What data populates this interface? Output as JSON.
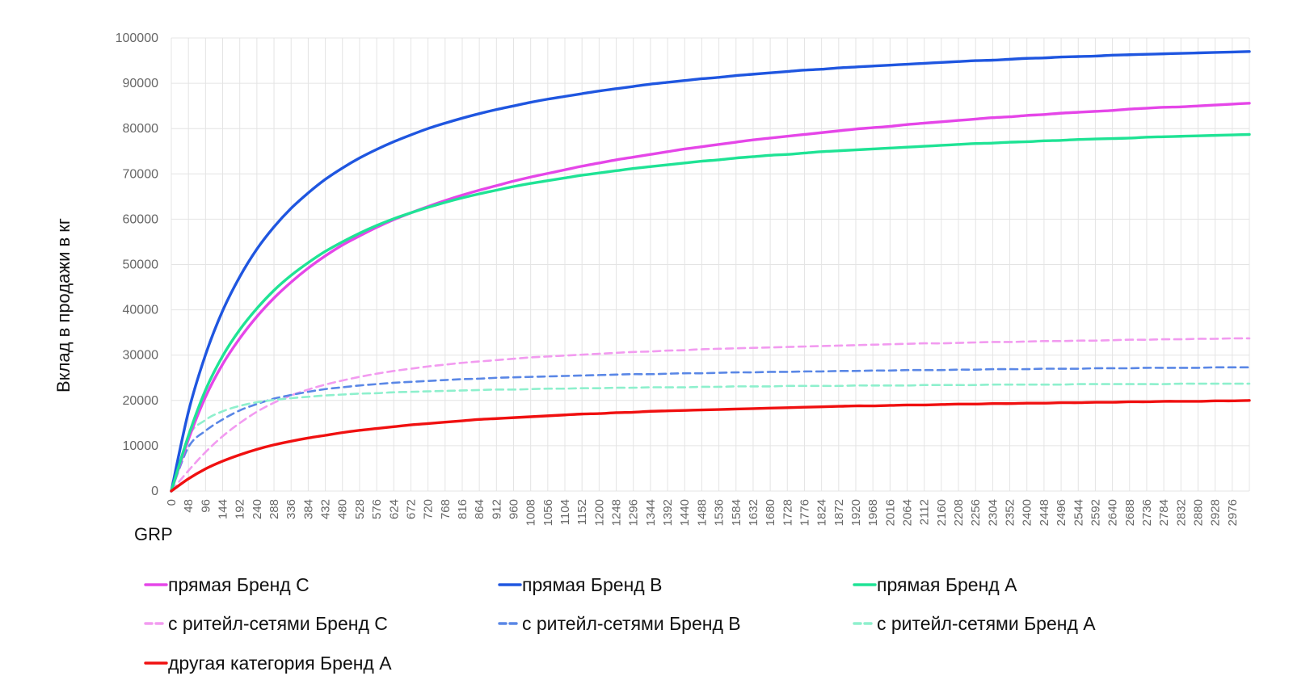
{
  "chart_data": {
    "type": "line",
    "ylabel": "Вклад в продажи в кг",
    "xlabel": "GRP",
    "ylim": [
      0,
      100000
    ],
    "yticks": [
      0,
      10000,
      20000,
      30000,
      40000,
      50000,
      60000,
      70000,
      80000,
      90000,
      100000
    ],
    "xlim": [
      0,
      3024
    ],
    "x_tick_step": 48,
    "x_tick_labels": [
      "0",
      "48",
      "96",
      "144",
      "192",
      "240",
      "288",
      "336",
      "384",
      "432",
      "480",
      "528",
      "576",
      "624",
      "672",
      "720",
      "768",
      "816",
      "864",
      "912",
      "960",
      "1008",
      "1056",
      "1104",
      "1152",
      "1200",
      "1248",
      "1296",
      "1344",
      "1392",
      "1440",
      "1488",
      "1536",
      "1584",
      "1632",
      "1680",
      "1728",
      "1776",
      "1824",
      "1872",
      "1920",
      "1968",
      "2016",
      "2064",
      "2112",
      "2160",
      "2208",
      "2256",
      "2304",
      "2352",
      "2400",
      "2448",
      "2496",
      "2544",
      "2592",
      "2640",
      "2688",
      "2736",
      "2784",
      "2832",
      "2880",
      "2928",
      "2976"
    ],
    "grid": true,
    "legend_position": "bottom",
    "x": [
      0,
      48,
      96,
      144,
      192,
      240,
      288,
      336,
      384,
      432,
      480,
      528,
      576,
      624,
      672,
      720,
      768,
      816,
      864,
      912,
      960,
      1008,
      1056,
      1104,
      1152,
      1200,
      1248,
      1296,
      1344,
      1392,
      1440,
      1488,
      1536,
      1584,
      1632,
      1680,
      1728,
      1776,
      1824,
      1872,
      1920,
      1968,
      2016,
      2064,
      2112,
      2160,
      2208,
      2256,
      2304,
      2352,
      2400,
      2448,
      2496,
      2544,
      2592,
      2640,
      2688,
      2736,
      2784,
      2832,
      2880,
      2928,
      2976,
      3024
    ],
    "series": [
      {
        "name": "прямая Бренд С",
        "color": "#e546e8",
        "dash": false,
        "values": [
          0,
          11400,
          20800,
          28000,
          33700,
          38500,
          42600,
          46100,
          49200,
          51900,
          54300,
          56300,
          58200,
          59900,
          61400,
          62800,
          64100,
          65300,
          66400,
          67400,
          68400,
          69300,
          70100,
          70900,
          71700,
          72400,
          73100,
          73700,
          74300,
          74900,
          75500,
          76000,
          76500,
          77000,
          77500,
          77900,
          78300,
          78700,
          79100,
          79500,
          79900,
          80200,
          80500,
          80900,
          81200,
          81500,
          81800,
          82100,
          82400,
          82600,
          82900,
          83100,
          83400,
          83600,
          83800,
          84000,
          84300,
          84500,
          84700,
          84800,
          85000,
          85200,
          85400,
          85600
        ]
      },
      {
        "name": "прямая Бренд В",
        "color": "#1f56e0",
        "dash": false,
        "values": [
          0,
          17500,
          30100,
          39800,
          47300,
          53400,
          58300,
          62400,
          65800,
          68800,
          71300,
          73500,
          75400,
          77100,
          78600,
          80000,
          81200,
          82300,
          83300,
          84200,
          85000,
          85800,
          86500,
          87100,
          87700,
          88300,
          88800,
          89300,
          89800,
          90200,
          90600,
          91000,
          91300,
          91700,
          92000,
          92300,
          92600,
          92900,
          93100,
          93400,
          93600,
          93800,
          94000,
          94200,
          94400,
          94600,
          94800,
          95000,
          95100,
          95300,
          95500,
          95600,
          95800,
          95900,
          96000,
          96200,
          96300,
          96400,
          96500,
          96600,
          96700,
          96800,
          96900,
          97000
        ]
      },
      {
        "name": "прямая Бренд А",
        "color": "#1fe395",
        "dash": false,
        "values": [
          0,
          12200,
          22300,
          29800,
          35600,
          40300,
          44300,
          47600,
          50400,
          52900,
          55000,
          56900,
          58600,
          60100,
          61400,
          62600,
          63700,
          64700,
          65600,
          66400,
          67200,
          67900,
          68500,
          69100,
          69700,
          70200,
          70700,
          71200,
          71600,
          72000,
          72400,
          72800,
          73100,
          73500,
          73800,
          74100,
          74300,
          74600,
          74900,
          75100,
          75300,
          75500,
          75700,
          75900,
          76100,
          76300,
          76500,
          76700,
          76800,
          77000,
          77100,
          77300,
          77400,
          77600,
          77700,
          77800,
          77900,
          78100,
          78200,
          78300,
          78400,
          78500,
          78600,
          78700
        ]
      },
      {
        "name": "с ритейл-сетями Бренд С",
        "color": "#f29bf0",
        "dash": true,
        "values": [
          0,
          4500,
          8600,
          12100,
          15000,
          17500,
          19500,
          21100,
          22400,
          23500,
          24400,
          25200,
          25900,
          26500,
          27000,
          27500,
          27900,
          28300,
          28600,
          28900,
          29200,
          29500,
          29700,
          29900,
          30100,
          30300,
          30500,
          30700,
          30800,
          31000,
          31100,
          31300,
          31400,
          31500,
          31600,
          31700,
          31800,
          31900,
          32000,
          32100,
          32200,
          32300,
          32400,
          32500,
          32600,
          32600,
          32700,
          32800,
          32900,
          32900,
          33000,
          33100,
          33100,
          33200,
          33200,
          33300,
          33400,
          33400,
          33500,
          33500,
          33600,
          33600,
          33700,
          33700
        ]
      },
      {
        "name": "с ритейл-сетями Бренд В",
        "color": "#5a87e6",
        "dash": true,
        "values": [
          0,
          9700,
          13300,
          15800,
          17800,
          19200,
          20400,
          21200,
          21900,
          22500,
          22900,
          23300,
          23600,
          23900,
          24100,
          24300,
          24500,
          24700,
          24800,
          25000,
          25100,
          25200,
          25300,
          25400,
          25500,
          25600,
          25700,
          25800,
          25800,
          25900,
          26000,
          26000,
          26100,
          26200,
          26200,
          26300,
          26300,
          26400,
          26400,
          26500,
          26500,
          26600,
          26600,
          26700,
          26700,
          26700,
          26800,
          26800,
          26900,
          26900,
          26900,
          27000,
          27000,
          27000,
          27100,
          27100,
          27100,
          27200,
          27200,
          27200,
          27200,
          27300,
          27300,
          27300
        ]
      },
      {
        "name": "с ритейл-сетями Бренд А",
        "color": "#8ef0cd",
        "dash": true,
        "values": [
          0,
          12000,
          15700,
          17600,
          18800,
          19600,
          20100,
          20500,
          20800,
          21100,
          21300,
          21500,
          21600,
          21800,
          21900,
          22000,
          22100,
          22200,
          22300,
          22400,
          22400,
          22500,
          22600,
          22600,
          22700,
          22700,
          22800,
          22800,
          22900,
          22900,
          22900,
          23000,
          23000,
          23100,
          23100,
          23100,
          23200,
          23200,
          23200,
          23200,
          23300,
          23300,
          23300,
          23300,
          23400,
          23400,
          23400,
          23400,
          23500,
          23500,
          23500,
          23500,
          23500,
          23600,
          23600,
          23600,
          23600,
          23600,
          23600,
          23700,
          23700,
          23700,
          23700,
          23700
        ]
      },
      {
        "name": "другая категория Бренд А",
        "color": "#f01010",
        "dash": false,
        "values": [
          0,
          2700,
          4900,
          6600,
          8000,
          9200,
          10200,
          11000,
          11700,
          12300,
          12900,
          13400,
          13800,
          14200,
          14600,
          14900,
          15200,
          15500,
          15800,
          16000,
          16200,
          16400,
          16600,
          16800,
          17000,
          17100,
          17300,
          17400,
          17600,
          17700,
          17800,
          17900,
          18000,
          18100,
          18200,
          18300,
          18400,
          18500,
          18600,
          18700,
          18800,
          18800,
          18900,
          19000,
          19000,
          19100,
          19200,
          19200,
          19300,
          19300,
          19400,
          19400,
          19500,
          19500,
          19600,
          19600,
          19700,
          19700,
          19800,
          19800,
          19800,
          19900,
          19900,
          20000
        ]
      }
    ]
  }
}
